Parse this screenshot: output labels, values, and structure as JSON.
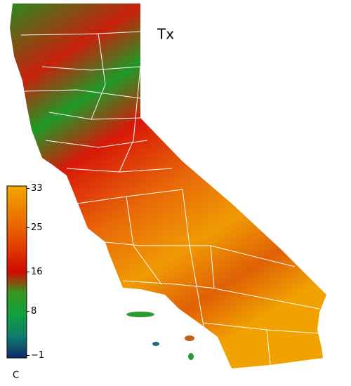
{
  "map": {
    "title": "Tx",
    "colorbar": {
      "label": "C",
      "lim": [
        -1.5,
        33.5
      ],
      "ticks": [
        33,
        25,
        16,
        8,
        {
          "value": -1,
          "label": "−1"
        }
      ]
    }
  }
}
